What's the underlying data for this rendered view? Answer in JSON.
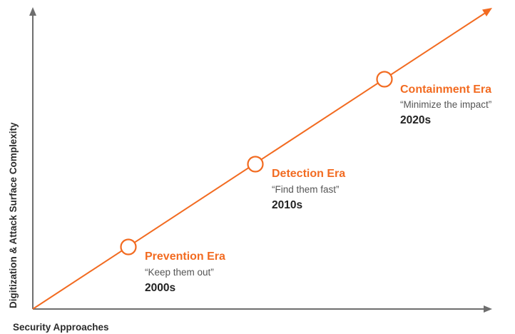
{
  "diagram": {
    "x_axis_label": "Security Approaches",
    "y_axis_label": "Digitization & Attack Surface Complexity",
    "accent_color": "#f26b21",
    "eras": [
      {
        "title": "Prevention Era",
        "quote": "“Keep them out”",
        "decade": "2000s"
      },
      {
        "title": "Detection Era",
        "quote": "“Find them fast”",
        "decade": "2010s"
      },
      {
        "title": "Containment Era",
        "quote": "“Minimize the impact”",
        "decade": "2020s"
      }
    ]
  }
}
